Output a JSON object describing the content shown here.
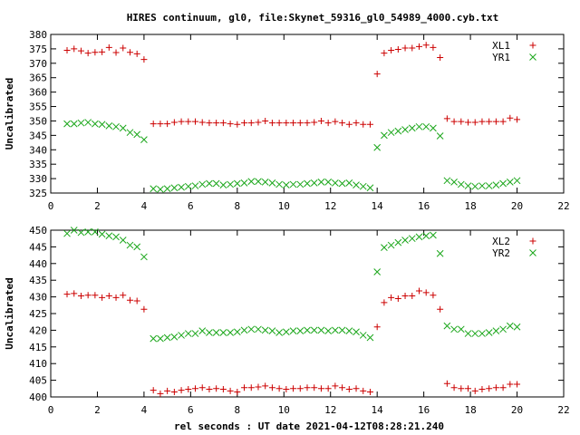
{
  "title": "HIRES continuum, gl0, file:Skynet_59316_gl0_54989_4000.cyb.txt",
  "xlabel": "rel seconds : UT date 2021-04-12T08:28:21.240",
  "colors": {
    "plus": "#cc0000",
    "cross": "#1aa61a"
  },
  "chart_data": [
    {
      "type": "scatter",
      "ylabel": "Uncalibrated",
      "xlim": [
        0,
        22
      ],
      "ylim": [
        325,
        380
      ],
      "xticks": [
        0,
        2,
        4,
        6,
        8,
        10,
        12,
        14,
        16,
        18,
        20,
        22
      ],
      "yticks": [
        325,
        330,
        335,
        340,
        345,
        350,
        355,
        360,
        365,
        370,
        375,
        380
      ],
      "legend_position": "top-right",
      "series": [
        {
          "name": "XL1",
          "marker": "plus",
          "x": [
            0.7,
            1.0,
            1.3,
            1.6,
            1.9,
            2.2,
            2.5,
            2.8,
            3.1,
            3.4,
            3.7,
            4.0,
            4.4,
            4.7,
            5.0,
            5.3,
            5.6,
            5.9,
            6.2,
            6.5,
            6.8,
            7.1,
            7.4,
            7.7,
            8.0,
            8.3,
            8.6,
            8.9,
            9.2,
            9.5,
            9.8,
            10.1,
            10.4,
            10.7,
            11.0,
            11.3,
            11.6,
            11.9,
            12.2,
            12.5,
            12.8,
            13.1,
            13.4,
            13.7,
            14.0,
            14.3,
            14.6,
            14.9,
            15.2,
            15.5,
            15.8,
            16.1,
            16.4,
            16.7,
            17.0,
            17.3,
            17.6,
            17.9,
            18.2,
            18.5,
            18.8,
            19.1,
            19.4,
            19.7,
            20.0
          ],
          "y": [
            374.5,
            375.0,
            374.3,
            373.5,
            373.8,
            373.9,
            375.5,
            373.7,
            375.3,
            373.8,
            373.3,
            371.3,
            349.0,
            349.0,
            349.0,
            349.5,
            349.8,
            349.8,
            349.8,
            349.5,
            349.3,
            349.3,
            349.3,
            349.0,
            348.8,
            349.3,
            349.3,
            349.5,
            350.0,
            349.3,
            349.3,
            349.3,
            349.3,
            349.3,
            349.3,
            349.5,
            350.0,
            349.3,
            349.8,
            349.3,
            348.8,
            349.3,
            348.8,
            348.8,
            366.3,
            373.5,
            374.5,
            374.8,
            375.3,
            375.3,
            375.8,
            376.3,
            375.5,
            372.0,
            350.8,
            349.8,
            349.8,
            349.5,
            349.5,
            349.8,
            349.8,
            349.8,
            349.8,
            351.0,
            350.5
          ]
        },
        {
          "name": "YR1",
          "marker": "cross",
          "x": [
            0.7,
            1.0,
            1.3,
            1.6,
            1.9,
            2.2,
            2.5,
            2.8,
            3.1,
            3.4,
            3.7,
            4.0,
            4.4,
            4.7,
            5.0,
            5.3,
            5.6,
            5.9,
            6.2,
            6.5,
            6.8,
            7.1,
            7.4,
            7.7,
            8.0,
            8.3,
            8.6,
            8.9,
            9.2,
            9.5,
            9.8,
            10.1,
            10.4,
            10.7,
            11.0,
            11.3,
            11.6,
            11.9,
            12.2,
            12.5,
            12.8,
            13.1,
            13.4,
            13.7,
            14.0,
            14.3,
            14.6,
            14.9,
            15.2,
            15.5,
            15.8,
            16.1,
            16.4,
            16.7,
            17.0,
            17.3,
            17.6,
            17.9,
            18.2,
            18.5,
            18.8,
            19.1,
            19.4,
            19.7,
            20.0
          ],
          "y": [
            349.0,
            349.0,
            349.3,
            349.5,
            349.0,
            348.8,
            348.3,
            348.0,
            347.5,
            346.0,
            345.3,
            343.5,
            326.5,
            326.3,
            326.5,
            326.8,
            327.0,
            327.3,
            327.5,
            328.0,
            328.3,
            328.3,
            327.8,
            328.0,
            328.3,
            328.5,
            329.0,
            329.0,
            328.8,
            328.5,
            328.0,
            327.8,
            328.0,
            328.0,
            328.3,
            328.5,
            328.8,
            328.8,
            328.5,
            328.3,
            328.5,
            327.8,
            327.3,
            326.8,
            340.8,
            345.0,
            346.0,
            346.5,
            347.0,
            347.5,
            348.0,
            348.0,
            347.5,
            344.8,
            329.3,
            328.8,
            328.0,
            327.5,
            327.3,
            327.5,
            327.5,
            327.8,
            328.3,
            328.8,
            329.3
          ]
        }
      ]
    },
    {
      "type": "scatter",
      "ylabel": "Uncalibrated",
      "xlim": [
        0,
        22
      ],
      "ylim": [
        400,
        450
      ],
      "xticks": [
        0,
        2,
        4,
        6,
        8,
        10,
        12,
        14,
        16,
        18,
        20,
        22
      ],
      "yticks": [
        400,
        405,
        410,
        415,
        420,
        425,
        430,
        435,
        440,
        445,
        450
      ],
      "legend_position": "top-right",
      "series": [
        {
          "name": "XL2",
          "marker": "plus",
          "x": [
            0.7,
            1.0,
            1.3,
            1.6,
            1.9,
            2.2,
            2.5,
            2.8,
            3.1,
            3.4,
            3.7,
            4.0,
            4.4,
            4.7,
            5.0,
            5.3,
            5.6,
            5.9,
            6.2,
            6.5,
            6.8,
            7.1,
            7.4,
            7.7,
            8.0,
            8.3,
            8.6,
            8.9,
            9.2,
            9.5,
            9.8,
            10.1,
            10.4,
            10.7,
            11.0,
            11.3,
            11.6,
            11.9,
            12.2,
            12.5,
            12.8,
            13.1,
            13.4,
            13.7,
            14.0,
            14.3,
            14.6,
            14.9,
            15.2,
            15.5,
            15.8,
            16.1,
            16.4,
            16.7,
            17.0,
            17.3,
            17.6,
            17.9,
            18.2,
            18.5,
            18.8,
            19.1,
            19.4,
            19.7,
            20.0
          ],
          "y": [
            430.8,
            431.0,
            430.3,
            430.5,
            430.5,
            429.8,
            430.3,
            429.8,
            430.5,
            429.0,
            428.8,
            426.3,
            402.0,
            401.0,
            401.8,
            401.5,
            402.0,
            402.3,
            402.5,
            402.8,
            402.3,
            402.5,
            402.3,
            401.8,
            401.5,
            402.8,
            402.8,
            403.0,
            403.3,
            402.8,
            402.5,
            402.3,
            402.5,
            402.5,
            402.8,
            402.8,
            402.5,
            402.5,
            403.3,
            402.8,
            402.3,
            402.5,
            401.8,
            401.5,
            421.0,
            428.3,
            429.8,
            429.5,
            430.3,
            430.3,
            431.8,
            431.3,
            430.5,
            426.3,
            404.0,
            402.8,
            402.5,
            402.5,
            401.8,
            402.3,
            402.5,
            402.8,
            402.8,
            403.8,
            403.8
          ]
        },
        {
          "name": "YR2",
          "marker": "cross",
          "x": [
            0.7,
            1.0,
            1.3,
            1.6,
            1.9,
            2.2,
            2.5,
            2.8,
            3.1,
            3.4,
            3.7,
            4.0,
            4.4,
            4.7,
            5.0,
            5.3,
            5.6,
            5.9,
            6.2,
            6.5,
            6.8,
            7.1,
            7.4,
            7.7,
            8.0,
            8.3,
            8.6,
            8.9,
            9.2,
            9.5,
            9.8,
            10.1,
            10.4,
            10.7,
            11.0,
            11.3,
            11.6,
            11.9,
            12.2,
            12.5,
            12.8,
            13.1,
            13.4,
            13.7,
            14.0,
            14.3,
            14.6,
            14.9,
            15.2,
            15.5,
            15.8,
            16.1,
            16.4,
            16.7,
            17.0,
            17.3,
            17.6,
            17.9,
            18.2,
            18.5,
            18.8,
            19.1,
            19.4,
            19.7,
            20.0
          ],
          "y": [
            449.0,
            450.0,
            449.3,
            449.5,
            449.5,
            448.8,
            448.3,
            448.0,
            447.0,
            445.5,
            445.0,
            442.0,
            417.5,
            417.5,
            417.8,
            418.0,
            418.5,
            419.0,
            419.0,
            419.8,
            419.3,
            419.3,
            419.3,
            419.3,
            419.5,
            420.0,
            420.3,
            420.3,
            420.0,
            419.8,
            419.3,
            419.5,
            419.8,
            419.8,
            420.0,
            420.0,
            420.0,
            419.8,
            420.0,
            420.0,
            419.8,
            419.5,
            418.5,
            417.8,
            437.5,
            444.8,
            445.5,
            446.3,
            447.0,
            447.5,
            448.0,
            448.3,
            448.5,
            443.0,
            421.3,
            420.3,
            420.3,
            419.0,
            419.0,
            419.0,
            419.3,
            419.8,
            420.3,
            421.3,
            421.0
          ]
        }
      ]
    }
  ]
}
